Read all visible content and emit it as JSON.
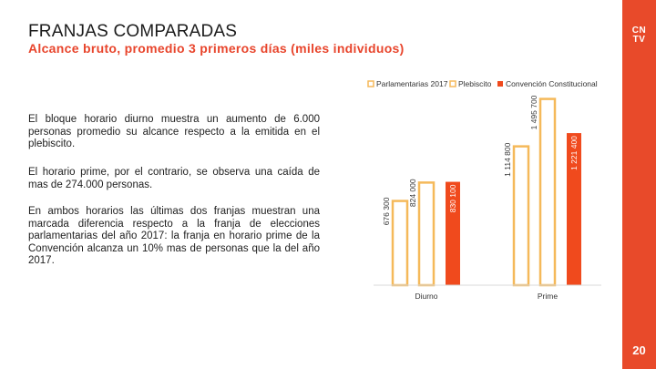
{
  "header": {
    "title": "FRANJAS COMPARADAS",
    "subtitle": "Alcance bruto, promedio 3 primeros días (miles individuos)"
  },
  "brand": {
    "logo_line1": "CN",
    "logo_line2": "TV",
    "page_number": "20"
  },
  "paragraphs": [
    "El bloque horario diurno muestra un aumento de 6.000 personas promedio su alcance respecto a la emitida en el plebiscito.",
    "El horario prime, por el contrario, se observa una caída de mas de 274.000 personas.",
    "En ambos horarios las últimas dos franjas muestran una marcada diferencia respecto a la franja de elecciones parlamentarias del año 2017: la franja en horario prime de la Convención alcanza un 10% mas de personas que la del año 2017."
  ],
  "chart_data": {
    "type": "bar",
    "categories": [
      "Diurno",
      "Prime"
    ],
    "series": [
      {
        "name": "Parlamentarias 2017",
        "values": [
          676300,
          1114800
        ],
        "labels": [
          "676 300",
          "1 114 800"
        ],
        "color": "#f5b95a"
      },
      {
        "name": "Plebiscito",
        "values": [
          824000,
          1495700
        ],
        "labels": [
          "824 000",
          "1 495 700"
        ],
        "color": "#f5b95a"
      },
      {
        "name": "Convención Constitucional",
        "values": [
          830100,
          1221400
        ],
        "labels": [
          "830 100",
          "1 221 400"
        ],
        "color": "#f04a1d"
      }
    ],
    "legend_position": "top",
    "grid": false,
    "ylim": [
      0,
      1500000
    ]
  },
  "colors": {
    "accent": "#e8452c",
    "bar_outline": "#f5b95a",
    "bar_fill": "#f04a1d"
  }
}
